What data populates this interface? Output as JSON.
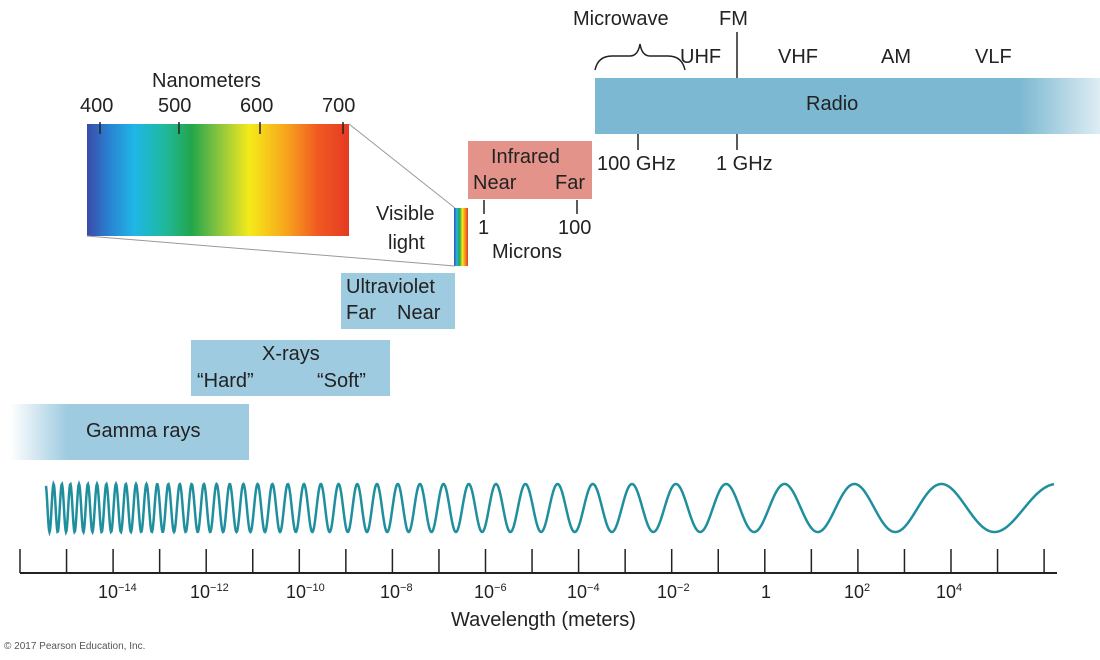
{
  "visible": {
    "nanometers_title": "Nanometers",
    "nm_ticks": [
      "400",
      "500",
      "600",
      "700"
    ],
    "visible_label_line1": "Visible",
    "visible_label_line2": "light"
  },
  "bands": {
    "gamma": {
      "label": "Gamma rays",
      "color": "#9ecbe0"
    },
    "xrays": {
      "label": "X-rays",
      "sub_left": "“Hard”",
      "sub_right": "“Soft”",
      "color": "#9ecbe0"
    },
    "ultraviolet": {
      "label": "Ultraviolet",
      "sub_left": "Far",
      "sub_right": "Near",
      "color": "#9ecbe0"
    },
    "infrared": {
      "label": "Infrared",
      "sub_left": "Near",
      "sub_right": "Far",
      "color": "#e3938a"
    },
    "radio": {
      "label": "Radio",
      "color": "#7cb8d1"
    }
  },
  "microns": {
    "tick_1": "1",
    "tick_100": "100",
    "title": "Microns"
  },
  "radio_sub": {
    "microwave": "Microwave",
    "fm": "FM",
    "uhf": "UHF",
    "vhf": "VHF",
    "am": "AM",
    "vlf": "VLF",
    "ghz_100": "100 GHz",
    "ghz_1": "1 GHz"
  },
  "axis": {
    "title": "Wavelength (meters)",
    "labels": [
      {
        "base": "10",
        "exp": "−14"
      },
      {
        "base": "10",
        "exp": "−12"
      },
      {
        "base": "10",
        "exp": "−10"
      },
      {
        "base": "10",
        "exp": "−8"
      },
      {
        "base": "10",
        "exp": "−6"
      },
      {
        "base": "10",
        "exp": "−4"
      },
      {
        "base": "10",
        "exp": "−2"
      },
      {
        "base": "1",
        "exp": ""
      },
      {
        "base": "10",
        "exp": "2"
      },
      {
        "base": "10",
        "exp": "4"
      }
    ]
  },
  "colors": {
    "wave": "#1f8f9e",
    "axis": "#222222"
  },
  "copyright": "© 2017 Pearson Education, Inc."
}
